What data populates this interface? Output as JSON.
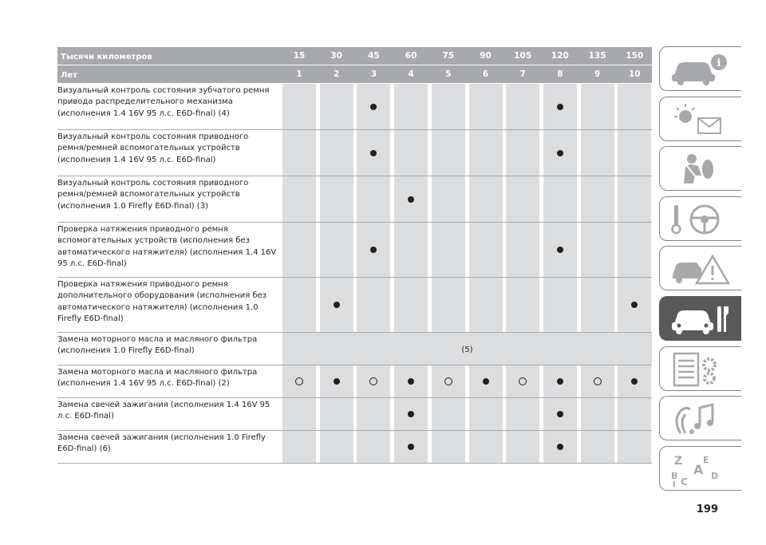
{
  "header": {
    "km_label": "Тысячи километров",
    "km_values": [
      "15",
      "30",
      "45",
      "60",
      "75",
      "90",
      "105",
      "120",
      "135",
      "150"
    ],
    "years_label": "Лет",
    "years_values": [
      "1",
      "2",
      "3",
      "4",
      "5",
      "6",
      "7",
      "8",
      "9",
      "10"
    ]
  },
  "rows": [
    {
      "text": "Визуальный контроль состояния зубчатого ремня привода распределительного механизма (исполнения 1.4 16V 95 л.с. E6D-final) (4)",
      "marks": [
        "",
        "",
        "dot",
        "",
        "",
        "",
        "",
        "dot",
        "",
        ""
      ]
    },
    {
      "text": "Визуальный контроль состояния приводного ремня/ремней вспомогательных устройств (исполнения 1.4 16V 95 л.с. E6D-final)",
      "marks": [
        "",
        "",
        "dot",
        "",
        "",
        "",
        "",
        "dot",
        "",
        ""
      ]
    },
    {
      "text": "Визуальный контроль состояния приводного ремня/ремней вспомогательных устройств (исполнения 1.0 Firefly E6D-final) (3)",
      "marks": [
        "",
        "",
        "",
        "dot",
        "",
        "",
        "",
        "",
        "",
        ""
      ]
    },
    {
      "text": "Проверка натяжения приводного ремня вспомогательных устройств (исполнения без автоматического натяжителя) (исполнения 1.4 16V 95 л.с. E6D-final)",
      "marks": [
        "",
        "",
        "dot",
        "",
        "",
        "",
        "",
        "dot",
        "",
        ""
      ]
    },
    {
      "text": "Проверка натяжения приводного ремня дополнительного оборудования (исполнения без автоматического натяжителя) (исполнения 1.0 Firefly E6D-final)",
      "marks": [
        "",
        "dot",
        "",
        "",
        "",
        "",
        "",
        "",
        "",
        "dot"
      ]
    },
    {
      "text": "Замена моторного масла и масляного фильтра (исполнения 1.0 Firefly E6D-final)",
      "merged": "(5)"
    },
    {
      "text": "Замена моторного масла и масляного фильтра (исполнения 1.4 16V 95 л.с. E6D-final) (2)",
      "marks": [
        "ring",
        "dot",
        "ring",
        "dot",
        "ring",
        "dot",
        "ring",
        "dot",
        "ring",
        "dot"
      ]
    },
    {
      "text": "Замена свечей зажигания (исполнения 1.4 16V 95 л.с. E6D-final)",
      "marks": [
        "",
        "",
        "",
        "dot",
        "",
        "",
        "",
        "dot",
        "",
        ""
      ]
    },
    {
      "text": "Замена свечей зажигания (исполнения 1.0 Firefly E6D-final) (6)",
      "marks": [
        "",
        "",
        "",
        "dot",
        "",
        "",
        "",
        "dot",
        "",
        ""
      ]
    }
  ],
  "sidebar": {
    "tabs": [
      {
        "icon": "car-info-icon",
        "active": false
      },
      {
        "icon": "warning-lights-mail-icon",
        "active": false
      },
      {
        "icon": "seatbelt-airbag-icon",
        "active": false
      },
      {
        "icon": "key-steering-wheel-icon",
        "active": false
      },
      {
        "icon": "car-crash-warning-icon",
        "active": false
      },
      {
        "icon": "car-wrench-maintenance-icon",
        "active": true
      },
      {
        "icon": "specifications-gears-icon",
        "active": false
      },
      {
        "icon": "multimedia-music-icon",
        "active": false
      },
      {
        "icon": "alphabetical-index-icon",
        "active": false
      }
    ]
  },
  "page_number": "199",
  "colors": {
    "header_bg": "#a7a9ac",
    "cell_bg": "#dcddde",
    "active_tab": "#58595b",
    "text": "#231f20"
  }
}
